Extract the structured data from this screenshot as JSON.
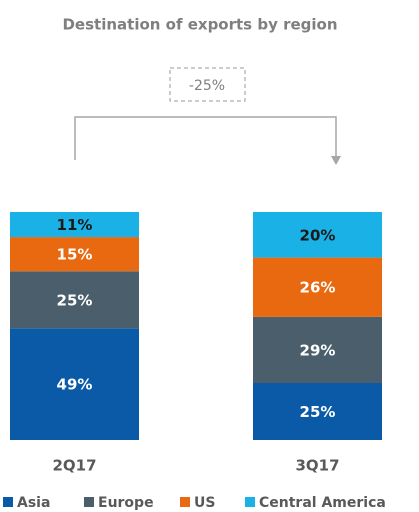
{
  "chart_data": {
    "type": "stacked_bar",
    "title": "Destination of exports by region",
    "annotation": "-25%",
    "categories": [
      "2Q17",
      "3Q17"
    ],
    "series": [
      {
        "name": "Asia",
        "color": "#0b5aa7",
        "values": [
          49,
          25
        ],
        "value_labels": [
          "49%",
          "25%"
        ]
      },
      {
        "name": "Europe",
        "color": "#4a5f6b",
        "values": [
          25,
          29
        ],
        "value_labels": [
          "25%",
          "29%"
        ]
      },
      {
        "name": "US",
        "color": "#e8690f",
        "values": [
          15,
          26
        ],
        "value_labels": [
          "15%",
          "26%"
        ]
      },
      {
        "name": "Central America",
        "color": "#1ab2e6",
        "values": [
          11,
          20
        ],
        "value_labels": [
          "11%",
          "20%"
        ]
      }
    ],
    "legend": "bottom"
  }
}
